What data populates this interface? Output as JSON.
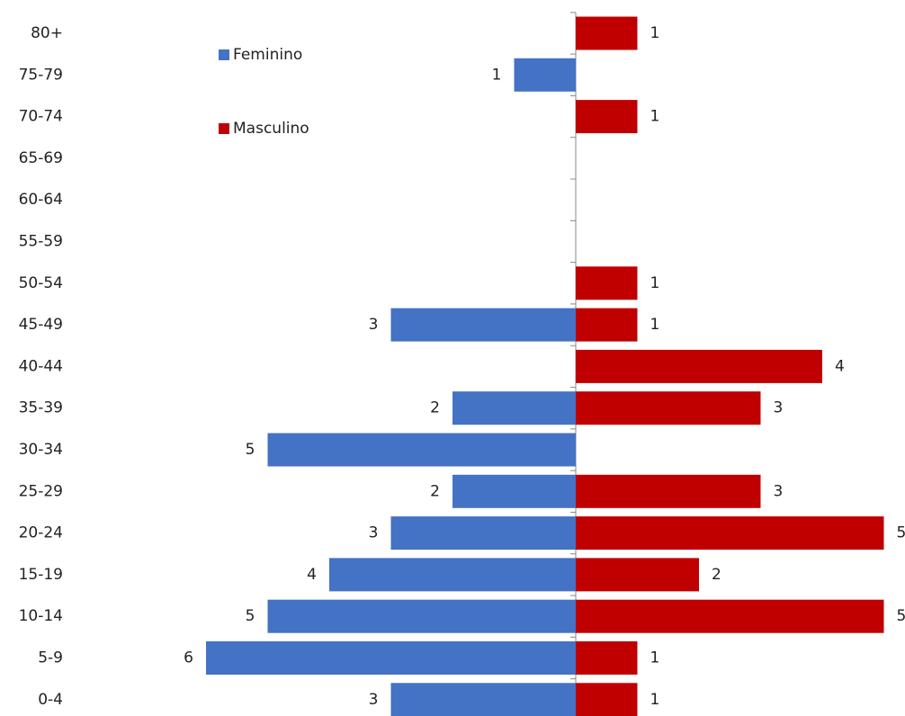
{
  "chart_data": {
    "type": "pyramid",
    "categories": [
      "80+",
      "75-79",
      "70-74",
      "65-69",
      "60-64",
      "55-59",
      "50-54",
      "45-49",
      "40-44",
      "35-39",
      "30-34",
      "25-29",
      "20-24",
      "15-19",
      "10-14",
      "5-9",
      "0-4"
    ],
    "series": [
      {
        "name": "Feminino",
        "color": "#4472c4",
        "values": [
          null,
          1,
          null,
          null,
          null,
          null,
          null,
          3,
          null,
          2,
          5,
          2,
          3,
          4,
          5,
          6,
          3
        ]
      },
      {
        "name": "Masculino",
        "color": "#c00000",
        "values": [
          1,
          null,
          1,
          null,
          null,
          null,
          1,
          1,
          4,
          3,
          null,
          3,
          5,
          2,
          5,
          1,
          1
        ]
      }
    ]
  }
}
